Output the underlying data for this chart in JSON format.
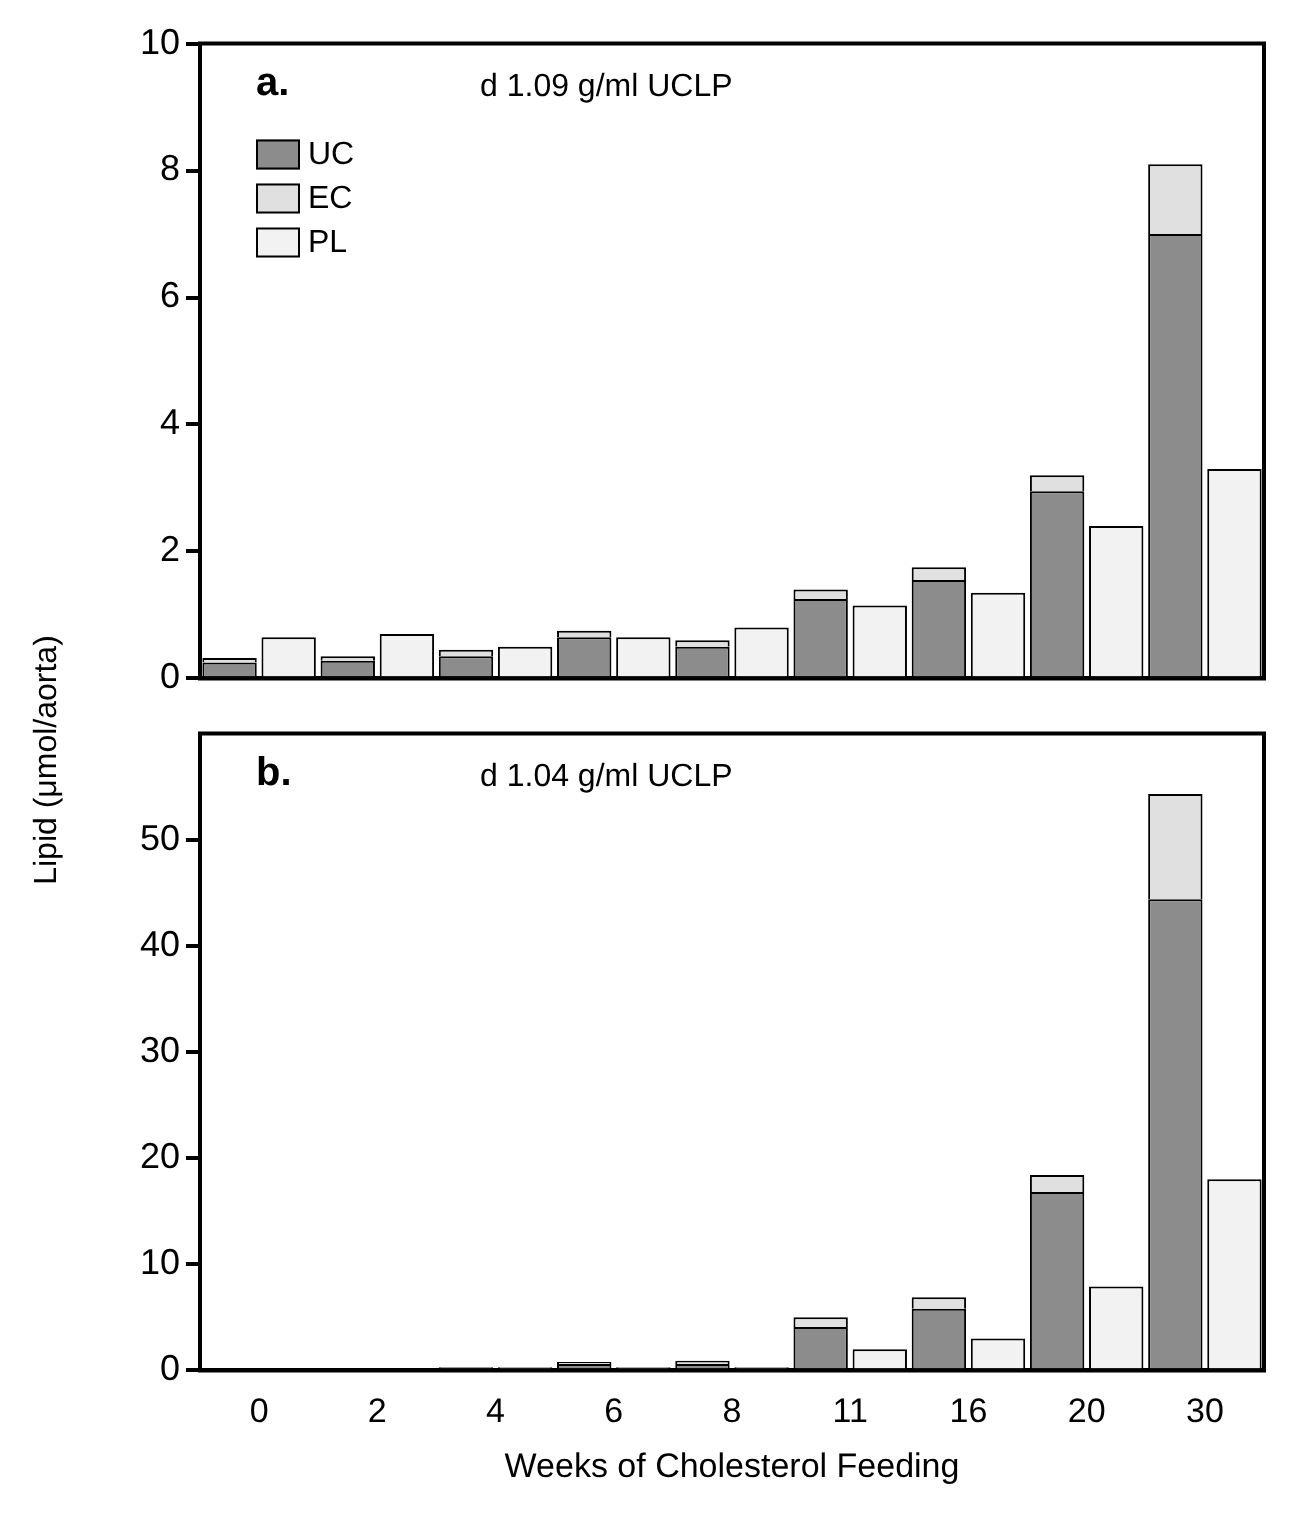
{
  "chart_data": [
    {
      "type": "bar",
      "title": "d 1.09 g/ml UCLP",
      "annotations": [
        "a."
      ],
      "ylabel": "Lipid (μmol/aorta)",
      "categories": [
        "0",
        null,
        "2",
        null,
        "4",
        null,
        "6",
        null,
        "8",
        null,
        "11",
        null,
        "16",
        null,
        "20",
        null,
        "30",
        null
      ],
      "stacked": true,
      "legend": "top left",
      "tick_labels": "y",
      "ylim": [
        0,
        10
      ],
      "yticks": [
        0,
        2,
        4,
        6,
        8,
        10
      ],
      "series": [
        {
          "name": "UC",
          "color": "#8c8c8c",
          "values": [
            0.25,
            null,
            0.28,
            null,
            0.35,
            null,
            0.65,
            null,
            0.5,
            null,
            1.25,
            null,
            1.55,
            null,
            2.95,
            null,
            7.0,
            null
          ]
        },
        {
          "name": "EC",
          "color": "#e0e0e0",
          "values": [
            0.07,
            null,
            0.07,
            null,
            0.1,
            null,
            0.1,
            null,
            0.1,
            null,
            0.15,
            null,
            0.2,
            null,
            0.25,
            null,
            1.1,
            null
          ]
        },
        {
          "name": "PL",
          "color": "#f2f2f2",
          "values": [
            null,
            0.65,
            null,
            0.7,
            null,
            0.5,
            null,
            0.65,
            null,
            0.8,
            null,
            1.15,
            null,
            1.35,
            null,
            2.4,
            null,
            3.3
          ]
        }
      ]
    },
    {
      "type": "bar",
      "title": "d 1.04 g/ml UCLP",
      "annotations": [
        "b."
      ],
      "xlabel": "Weeks of Cholesterol Feeding",
      "categories": [
        "0",
        null,
        "2",
        null,
        "4",
        null,
        "6",
        null,
        "8",
        null,
        "11",
        null,
        "16",
        null,
        "20",
        null,
        "30",
        null
      ],
      "stacked": true,
      "ylim": [
        0,
        60
      ],
      "yticks": [
        0,
        10,
        20,
        30,
        40,
        50
      ],
      "series": [
        {
          "color": "#8c8c8c",
          "values": [
            null,
            null,
            null,
            null,
            0.3,
            null,
            0.6,
            null,
            0.6,
            null,
            4.1,
            null,
            5.8,
            null,
            16.8,
            null,
            44.4,
            null
          ]
        },
        {
          "color": "#e0e0e0",
          "values": [
            null,
            null,
            null,
            null,
            null,
            null,
            0.2,
            null,
            0.3,
            null,
            0.9,
            null,
            1.1,
            null,
            1.6,
            null,
            9.9,
            null
          ]
        },
        {
          "color": "#f2f2f2",
          "values": [
            null,
            null,
            null,
            null,
            null,
            0.3,
            null,
            0.3,
            null,
            0.3,
            null,
            2.0,
            null,
            3.0,
            null,
            7.9,
            null,
            18.0
          ]
        }
      ]
    }
  ]
}
